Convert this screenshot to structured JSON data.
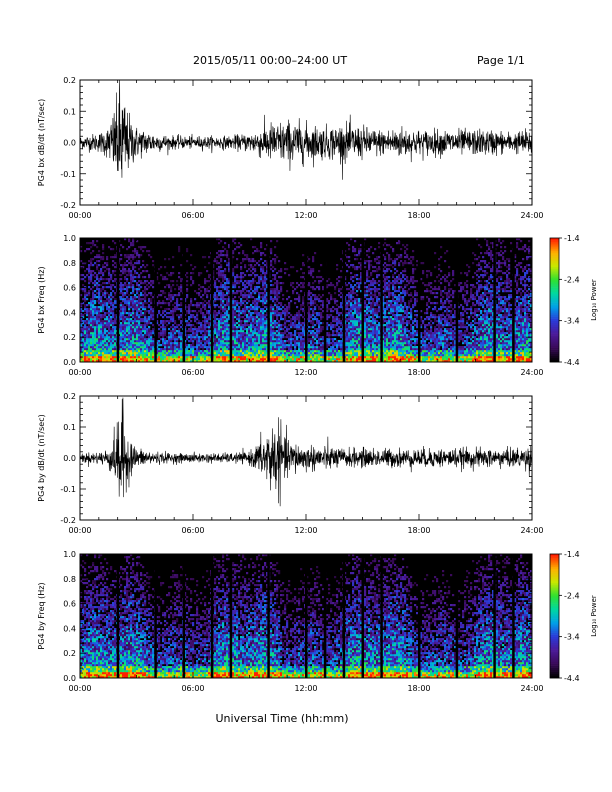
{
  "header": {
    "title": "2015/05/11   00:00–24:00 UT",
    "page": "Page 1/1"
  },
  "xlabel": "Universal Time (hh:mm)",
  "colorbar": {
    "label": "Log₁₀ Power",
    "ticks": [
      "-1.4",
      "-2.4",
      "-3.4",
      "-4.4"
    ],
    "range": [
      -4.4,
      -1.4
    ],
    "colors": [
      "#000000",
      "#3a0a5a",
      "#4b1a9a",
      "#2a3ad8",
      "#00a0e8",
      "#00d8a0",
      "#30e030",
      "#c8e800",
      "#ffb000",
      "#ff2000"
    ]
  },
  "chart_data": [
    {
      "type": "line",
      "ylabel": "PG4 bx dB/dt (nT/sec)",
      "xlim": [
        0,
        24
      ],
      "ylim": [
        -0.2,
        0.2
      ],
      "x_ticks": [
        "00:00",
        "06:00",
        "12:00",
        "18:00",
        "24:00"
      ],
      "y_ticks": [
        "0.2",
        "0.1",
        "0.0",
        "-0.1",
        "-0.2"
      ],
      "envelope": {
        "x": [
          0,
          1,
          1.5,
          2.0,
          2.1,
          2.5,
          3,
          4,
          5,
          6,
          7,
          8,
          9,
          10,
          11,
          12,
          13,
          14,
          15,
          16,
          17,
          18,
          19,
          20,
          21,
          22,
          23,
          23.5,
          24
        ],
        "amp": [
          0.02,
          0.03,
          0.05,
          0.14,
          0.22,
          0.1,
          0.05,
          0.03,
          0.02,
          0.02,
          0.02,
          0.02,
          0.03,
          0.06,
          0.07,
          0.06,
          0.05,
          0.06,
          0.05,
          0.04,
          0.05,
          0.04,
          0.04,
          0.04,
          0.04,
          0.04,
          0.03,
          0.04,
          0.04
        ]
      }
    },
    {
      "type": "heatmap",
      "ylabel": "PG4 bx Freq (Hz)",
      "xlim": [
        0,
        24
      ],
      "ylim": [
        0,
        1.0
      ],
      "x_ticks": [
        "00:00",
        "06:00",
        "12:00",
        "18:00",
        "24:00"
      ],
      "y_ticks": [
        "1.0",
        "0.8",
        "0.6",
        "0.4",
        "0.2",
        "0.0"
      ],
      "gaps_hours": [
        2.0,
        4.0,
        5.5,
        7.0,
        8.0,
        10.0,
        12.0,
        13.0,
        14.0,
        15.0,
        16.0,
        18.0,
        20.0,
        22.0,
        23.0
      ]
    },
    {
      "type": "line",
      "ylabel": "PG4 by dB/dt (nT/sec)",
      "xlim": [
        0,
        24
      ],
      "ylim": [
        -0.2,
        0.2
      ],
      "x_ticks": [
        "00:00",
        "06:00",
        "12:00",
        "18:00",
        "24:00"
      ],
      "y_ticks": [
        "0.2",
        "0.1",
        "0.0",
        "-0.1",
        "-0.2"
      ],
      "envelope": {
        "x": [
          0,
          1,
          1.5,
          2.0,
          2.1,
          2.5,
          3,
          4,
          5,
          6,
          7,
          8,
          9,
          9.5,
          10,
          10.5,
          11,
          12,
          13,
          14,
          15,
          16,
          17,
          18,
          19,
          20,
          21,
          22,
          23,
          24
        ],
        "amp": [
          0.015,
          0.02,
          0.03,
          0.1,
          0.22,
          0.08,
          0.03,
          0.02,
          0.015,
          0.015,
          0.015,
          0.015,
          0.02,
          0.05,
          0.1,
          0.12,
          0.06,
          0.04,
          0.04,
          0.03,
          0.03,
          0.03,
          0.03,
          0.03,
          0.03,
          0.03,
          0.03,
          0.03,
          0.03,
          0.04
        ]
      }
    },
    {
      "type": "heatmap",
      "ylabel": "PG4 by Freq (Hz)",
      "xlim": [
        0,
        24
      ],
      "ylim": [
        0,
        1.0
      ],
      "x_ticks": [
        "00:00",
        "06:00",
        "12:00",
        "18:00",
        "24:00"
      ],
      "y_ticks": [
        "1.0",
        "0.8",
        "0.6",
        "0.4",
        "0.2",
        "0.0"
      ],
      "gaps_hours": [
        2.0,
        4.0,
        5.5,
        7.0,
        8.0,
        10.0,
        12.0,
        13.0,
        14.0,
        15.0,
        16.0,
        18.0,
        20.0,
        22.0,
        23.0
      ]
    }
  ]
}
